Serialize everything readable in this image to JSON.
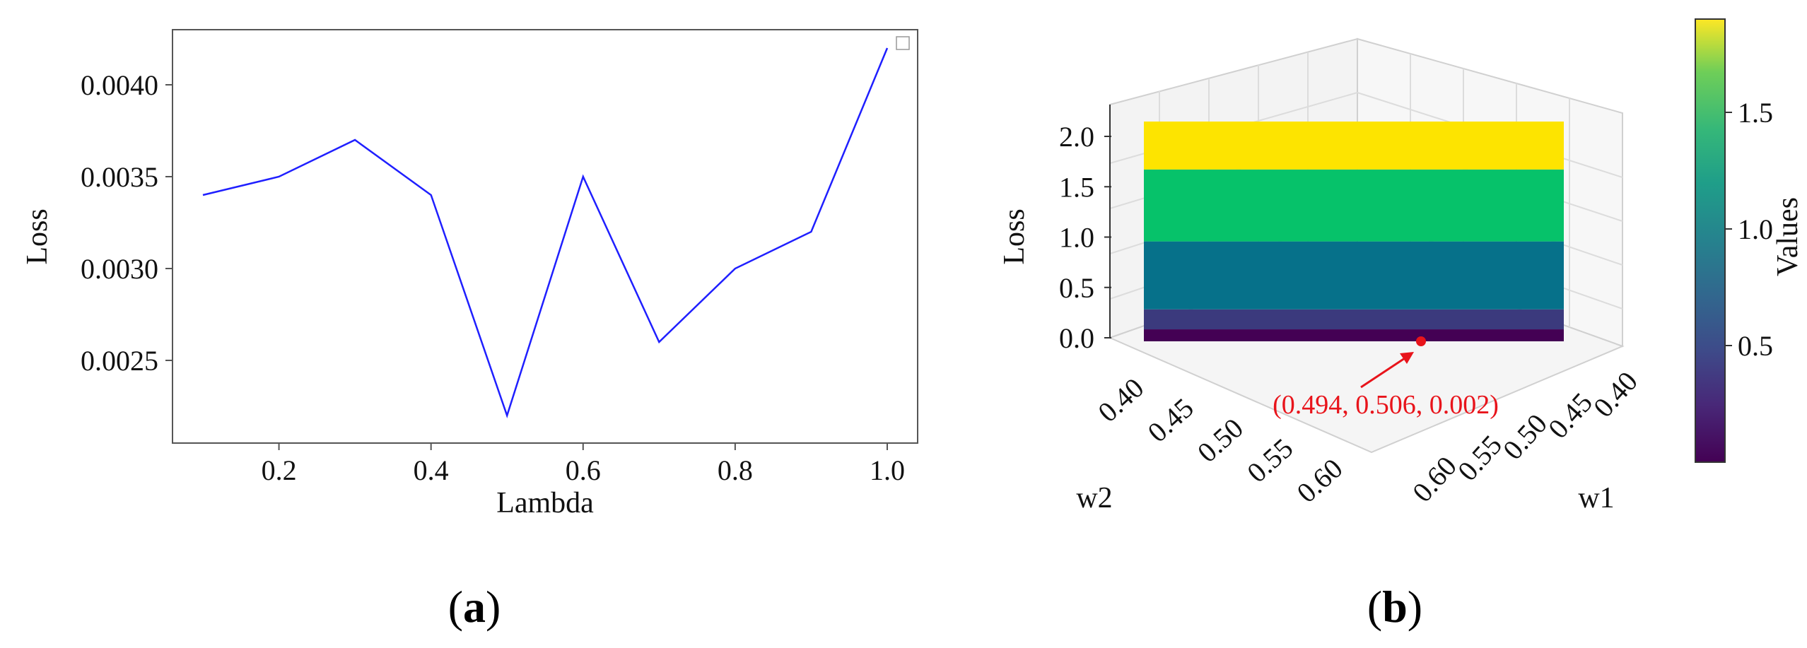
{
  "chart_data": [
    {
      "type": "line",
      "panel_label": "a",
      "xlabel": "Lambda",
      "ylabel": "Loss",
      "x": [
        0.1,
        0.2,
        0.3,
        0.4,
        0.5,
        0.6,
        0.7,
        0.8,
        0.9,
        1.0
      ],
      "series": [
        {
          "values": [
            0.0034,
            0.0035,
            0.0037,
            0.0034,
            0.0022,
            0.0035,
            0.0026,
            0.003,
            0.0032,
            0.0042
          ],
          "color": "#1f1fff"
        }
      ],
      "xlim": [
        0.06,
        1.04
      ],
      "ylim": [
        0.00205,
        0.0043
      ],
      "xticks": [
        "0.2",
        "0.4",
        "0.6",
        "0.8",
        "1.0"
      ],
      "xtick_values": [
        0.2,
        0.4,
        0.6,
        0.8,
        1.0
      ],
      "yticks": [
        "0.0025",
        "0.0030",
        "0.0035",
        "0.0040"
      ],
      "ytick_values": [
        0.0025,
        0.003,
        0.0035,
        0.004
      ],
      "grid": false,
      "legend": "top-right (empty)"
    },
    {
      "type": "surface3d",
      "panel_label": "b",
      "xlabel": "w1",
      "ylabel": "w2",
      "zlabel": "Loss",
      "colorbar_label": "Values",
      "colormap": "viridis",
      "xticks": [
        "0.40",
        "0.45",
        "0.50",
        "0.55",
        "0.60"
      ],
      "yticks": [
        "0.40",
        "0.45",
        "0.50",
        "0.55",
        "0.60"
      ],
      "zticks": [
        "0.0",
        "0.5",
        "1.0",
        "1.5",
        "2.0"
      ],
      "zlim": [
        0.0,
        2.2
      ],
      "bands": [
        {
          "from": 0.0,
          "to": 0.12,
          "color": "#440154"
        },
        {
          "from": 0.12,
          "to": 0.32,
          "color": "#3b3a7d"
        },
        {
          "from": 0.32,
          "to": 1.0,
          "color": "#06718a"
        },
        {
          "from": 1.0,
          "to": 1.72,
          "color": "#06c26a"
        },
        {
          "from": 1.72,
          "to": 2.2,
          "color": "#fde400"
        }
      ],
      "colorbar_ticks": [
        "0.5",
        "1.0",
        "1.5"
      ],
      "colorbar_tick_values": [
        0.5,
        1.0,
        1.5
      ],
      "colorbar_range": [
        0.0,
        1.9
      ],
      "minimum_point": {
        "w1": 0.494,
        "w2": 0.506,
        "loss": 0.002
      },
      "annotation": "(0.494, 0.506, 0.002)",
      "annotation_color": "#e8141b"
    }
  ]
}
